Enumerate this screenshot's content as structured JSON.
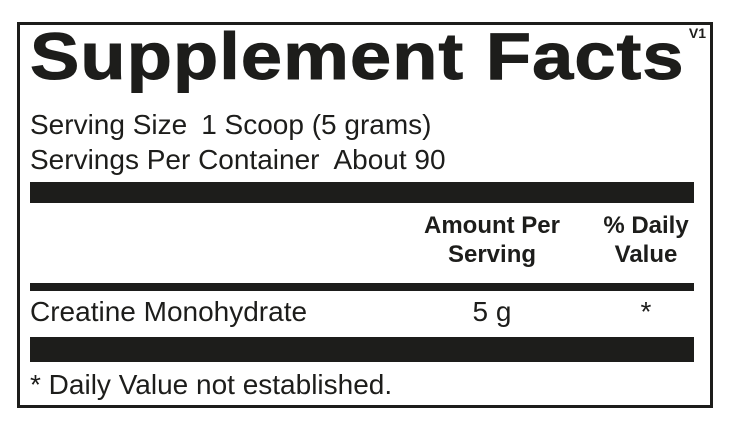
{
  "label": {
    "version_tag": "V1",
    "title": "Supplement Facts",
    "serving_size": {
      "label": "Serving Size",
      "value": "1 Scoop (5 grams)"
    },
    "servings_per_container": {
      "label": "Servings Per Container",
      "value": "About 90"
    },
    "columns": {
      "amount_per_serving": {
        "line1": "Amount Per",
        "line2": "Serving"
      },
      "percent_daily_value": {
        "line1": "% Daily",
        "line2": "Value"
      }
    },
    "ingredients": [
      {
        "name": "Creatine Monohydrate",
        "amount": "5 g",
        "daily_value": "*"
      }
    ],
    "footnote": "* Daily Value not established."
  },
  "colors": {
    "ink": "#1d1d1b",
    "background": "#ffffff"
  }
}
